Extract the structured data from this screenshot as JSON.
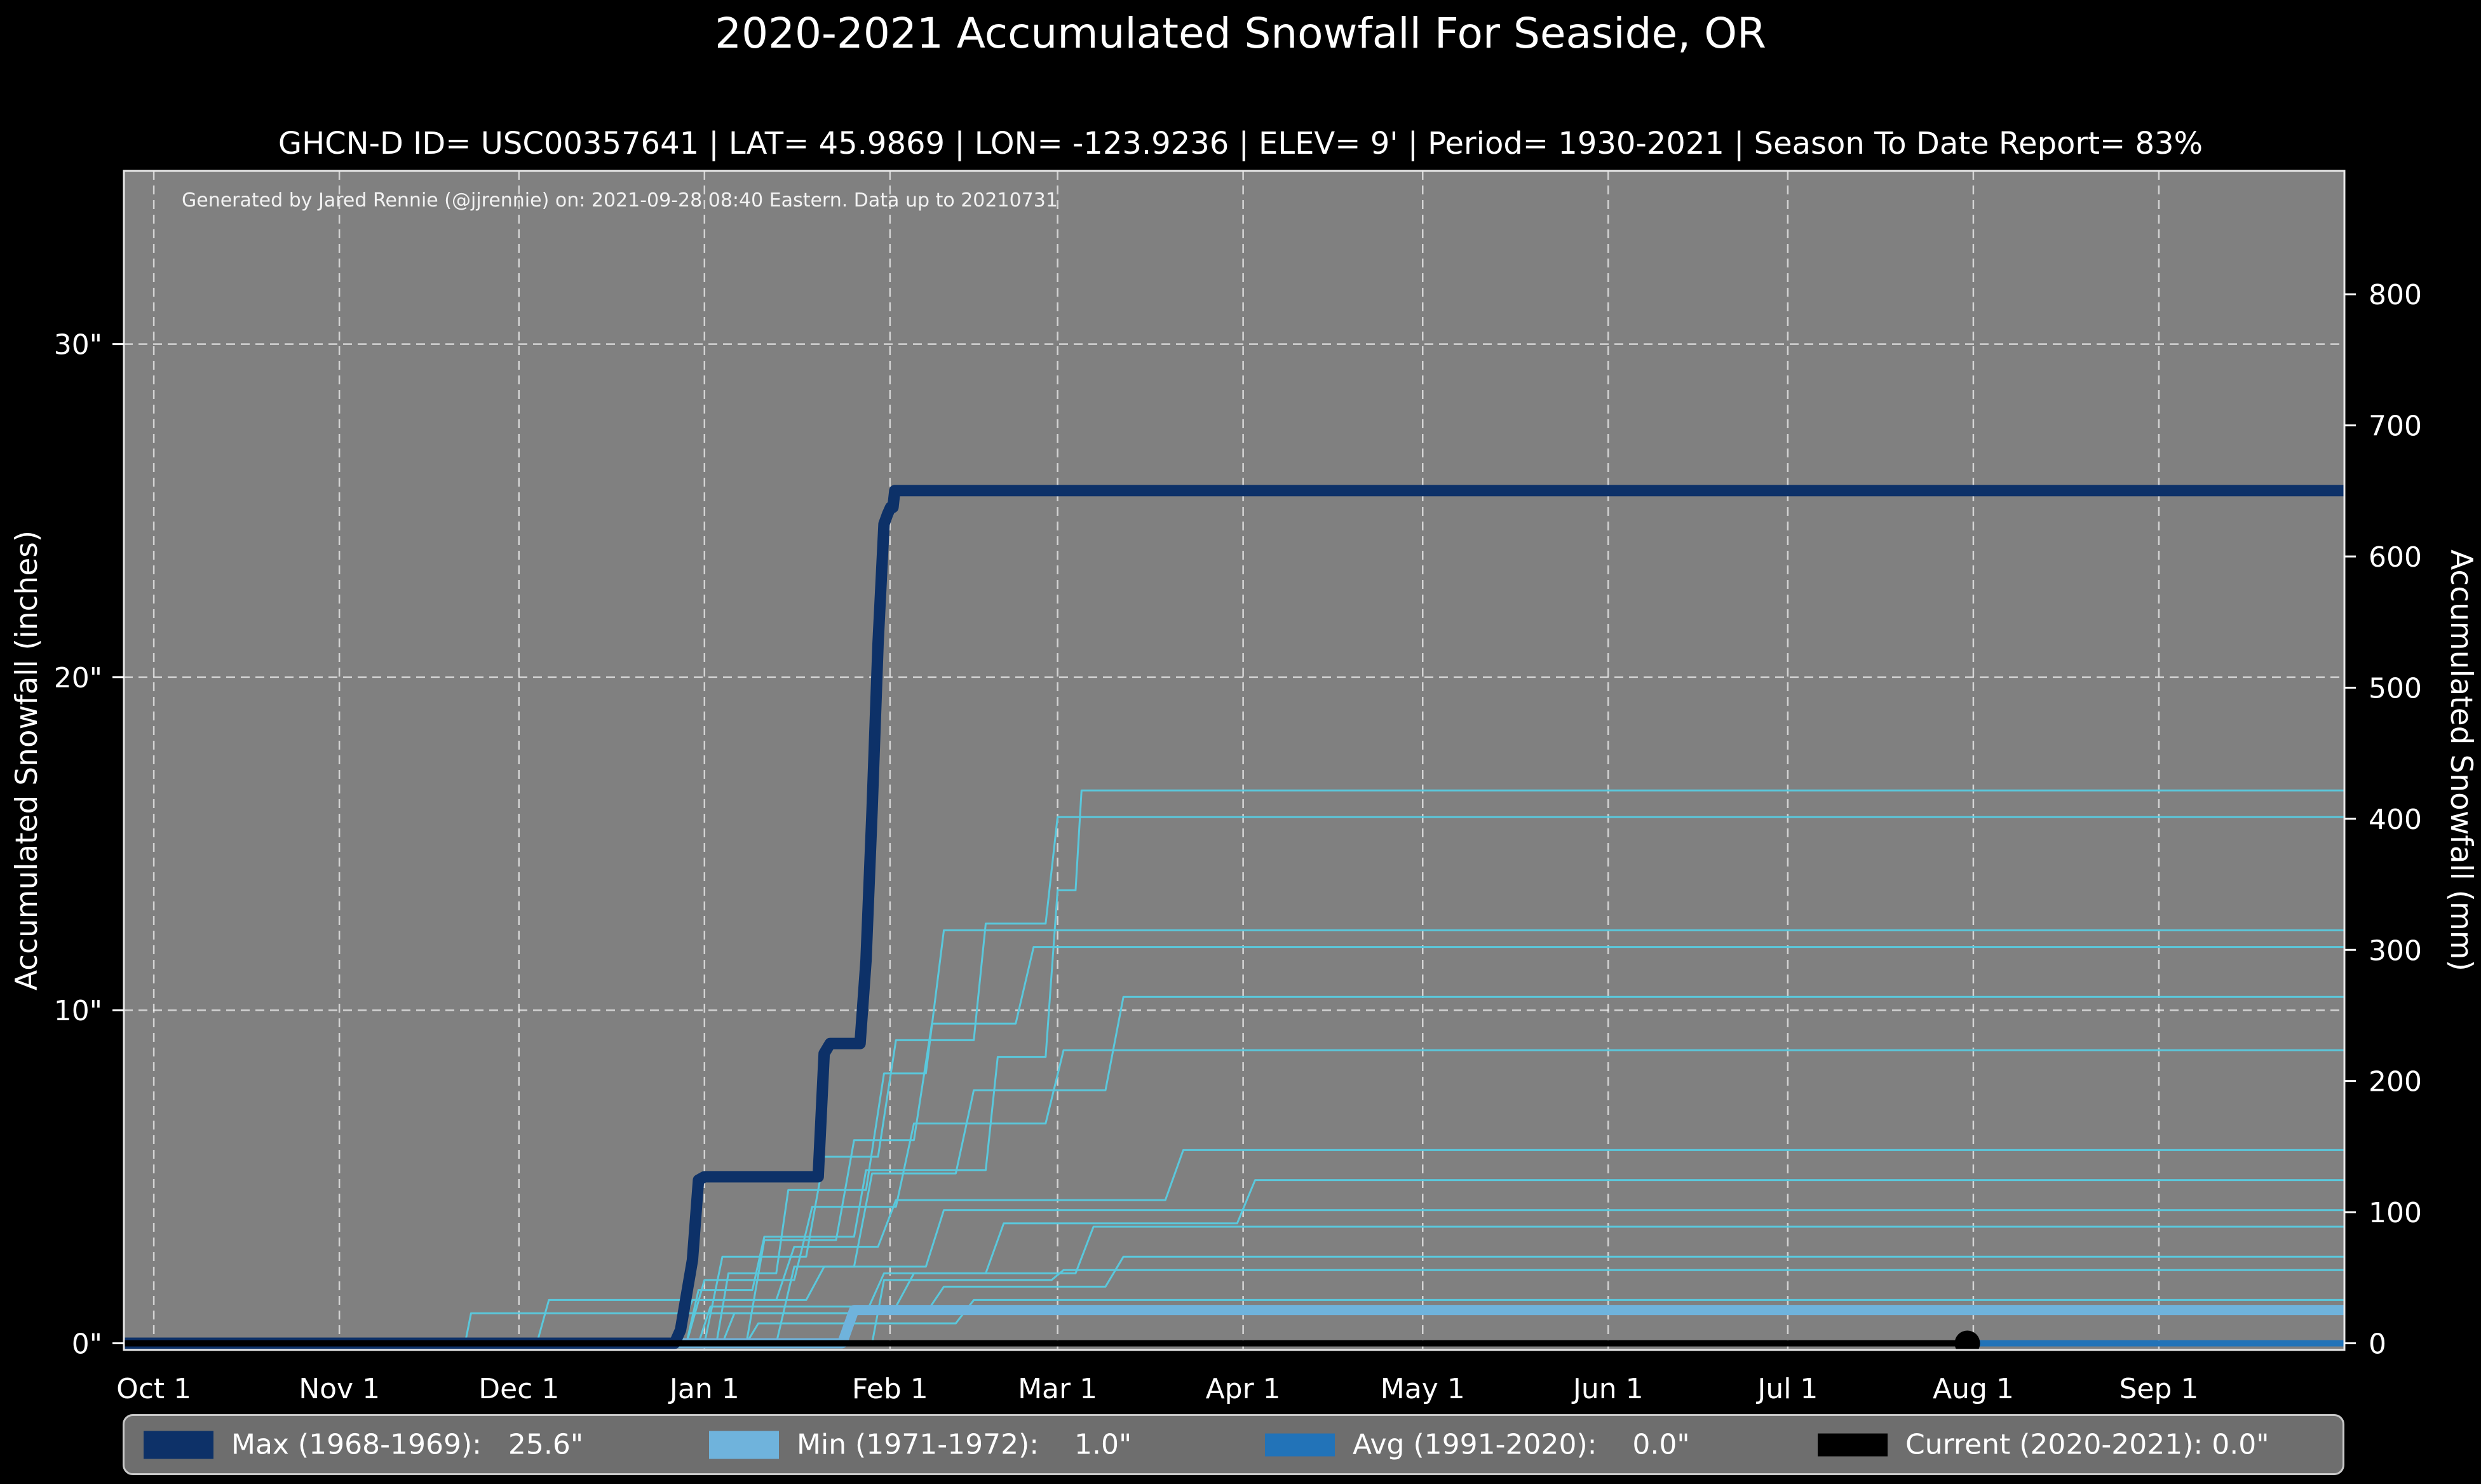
{
  "header": {
    "title": "2020-2021 Accumulated Snowfall For Seaside, OR",
    "subtitle": "GHCN-D ID= USC00357641 | LAT= 45.9869 | LON= -123.9236 | ELEV= 9' | Period= 1930-2021 | Season To Date Report= 83%"
  },
  "annotation": "Generated by Jared Rennie (@jjrennie) on: 2021-09-28 08:40 Eastern. Data up to 20210731",
  "colors": {
    "page_bg": "#000000",
    "plot_bg": "#808080",
    "grid": "rgba(255,255,255,0.65)",
    "spine": "#e8e8e8",
    "max_line": "#0d3168",
    "min_line": "#6fb3dc",
    "avg_line": "#2273b8",
    "current_line": "#000000",
    "other_years_line": "#5ac8dc"
  },
  "legend": {
    "items": [
      {
        "label": "Max (1968-1969):   25.6\"",
        "color": "#0d3168"
      },
      {
        "label": "Min (1971-1972):    1.0\"",
        "color": "#6fb3dc"
      },
      {
        "label": "Avg (1991-2020):    0.0\"",
        "color": "#2273b8"
      },
      {
        "label": "Current (2020-2021): 0.0\"",
        "color": "#000000"
      }
    ]
  },
  "chart_data": {
    "type": "line",
    "title": "2020-2021 Accumulated Snowfall For Seaside, OR",
    "xlabel": "",
    "ylabel_left": "Accumulated Snowfall (inches)",
    "ylabel_right": "Accumulated Snowfall (mm)",
    "x_unit": "days since Oct 1",
    "xlim": [
      -5,
      366
    ],
    "ylim_inches": [
      0,
      35.2
    ],
    "grid": true,
    "legend_position": "bottom",
    "x_ticks": [
      {
        "label": "Oct 1",
        "day": 0
      },
      {
        "label": "Nov 1",
        "day": 31
      },
      {
        "label": "Dec 1",
        "day": 61
      },
      {
        "label": "Jan 1",
        "day": 92
      },
      {
        "label": "Feb 1",
        "day": 123
      },
      {
        "label": "Mar 1",
        "day": 151
      },
      {
        "label": "Apr 1",
        "day": 182
      },
      {
        "label": "May 1",
        "day": 212
      },
      {
        "label": "Jun 1",
        "day": 243
      },
      {
        "label": "Jul 1",
        "day": 273
      },
      {
        "label": "Aug 1",
        "day": 304
      },
      {
        "label": "Sep 1",
        "day": 335
      }
    ],
    "y_left_ticks": [
      {
        "label": "0\"",
        "value": 0
      },
      {
        "label": "10\"",
        "value": 10
      },
      {
        "label": "20\"",
        "value": 20
      },
      {
        "label": "30\"",
        "value": 30
      }
    ],
    "y_right_ticks_mm": [
      0,
      100,
      200,
      300,
      400,
      500,
      600,
      700,
      800
    ],
    "series": [
      {
        "name": "Max (1968-1969)",
        "total": "25.6\"",
        "color": "#0d3168",
        "width": 18,
        "points": [
          [
            -5,
            0
          ],
          [
            87,
            0
          ],
          [
            88,
            0.4
          ],
          [
            90,
            2.5
          ],
          [
            91,
            4.9
          ],
          [
            92,
            5.0
          ],
          [
            111,
            5.0
          ],
          [
            112,
            8.7
          ],
          [
            113,
            9.0
          ],
          [
            118,
            9.0
          ],
          [
            119,
            11.5
          ],
          [
            120,
            16.0
          ],
          [
            121,
            21.0
          ],
          [
            122,
            24.6
          ],
          [
            122.6,
            24.9
          ],
          [
            123.1,
            25.1
          ],
          [
            123.5,
            25.1
          ],
          [
            123.8,
            25.6
          ],
          [
            366,
            25.6
          ]
        ]
      },
      {
        "name": "Min (1971-1972)",
        "total": "1.0\"",
        "color": "#6fb3dc",
        "width": 16,
        "points": [
          [
            -5,
            0
          ],
          [
            115,
            0
          ],
          [
            116,
            0.5
          ],
          [
            117,
            1.0
          ],
          [
            366,
            1.0
          ]
        ]
      },
      {
        "name": "Avg (1991-2020)",
        "total": "0.0\"",
        "color": "#2273b8",
        "width": 10,
        "points": [
          [
            -5,
            0
          ],
          [
            366,
            0
          ]
        ]
      },
      {
        "name": "Current (2020-2021)",
        "total": "0.0\"",
        "color": "#000000",
        "width": 10,
        "points": [
          [
            -5,
            0
          ],
          [
            303,
            0
          ]
        ],
        "end_marker": {
          "day": 303,
          "value": 0,
          "radius": 20
        }
      }
    ],
    "other_years": [
      {
        "points": [
          [
            -5,
            0
          ],
          [
            89,
            0
          ],
          [
            91,
            1.6
          ],
          [
            100,
            1.6
          ],
          [
            102,
            3.2
          ],
          [
            117,
            3.2
          ],
          [
            119,
            5.2
          ],
          [
            139,
            5.2
          ],
          [
            141,
            8.6
          ],
          [
            149,
            8.6
          ],
          [
            151,
            13.6
          ],
          [
            154,
            13.6
          ],
          [
            155,
            16.6
          ],
          [
            366,
            16.6
          ]
        ]
      },
      {
        "points": [
          [
            -5,
            0
          ],
          [
            92,
            0
          ],
          [
            95,
            2.6
          ],
          [
            109,
            2.6
          ],
          [
            112,
            5.6
          ],
          [
            121,
            5.6
          ],
          [
            124,
            9.1
          ],
          [
            137,
            9.1
          ],
          [
            139,
            12.6
          ],
          [
            149,
            12.6
          ],
          [
            151,
            15.8
          ],
          [
            366,
            15.8
          ]
        ]
      },
      {
        "points": [
          [
            -5,
            0
          ],
          [
            94,
            0
          ],
          [
            96,
            2.1
          ],
          [
            104,
            2.1
          ],
          [
            106,
            4.6
          ],
          [
            119,
            4.6
          ],
          [
            122,
            8.1
          ],
          [
            129,
            8.1
          ],
          [
            132,
            12.4
          ],
          [
            366,
            12.4
          ]
        ]
      },
      {
        "points": [
          [
            -5,
            0
          ],
          [
            99,
            0
          ],
          [
            102,
            3.1
          ],
          [
            114,
            3.1
          ],
          [
            117,
            6.1
          ],
          [
            127,
            6.1
          ],
          [
            130,
            9.6
          ],
          [
            144,
            9.6
          ],
          [
            147,
            11.9
          ],
          [
            366,
            11.9
          ]
        ]
      },
      {
        "points": [
          [
            -5,
            0
          ],
          [
            104,
            0
          ],
          [
            107,
            2.3
          ],
          [
            117,
            2.3
          ],
          [
            120,
            5.1
          ],
          [
            134,
            5.1
          ],
          [
            137,
            7.6
          ],
          [
            159,
            7.6
          ],
          [
            162,
            10.4
          ],
          [
            366,
            10.4
          ]
        ]
      },
      {
        "points": [
          [
            -5,
            0
          ],
          [
            89,
            0
          ],
          [
            92,
            1.9
          ],
          [
            107,
            1.9
          ],
          [
            110,
            4.1
          ],
          [
            124,
            4.1
          ],
          [
            127,
            6.6
          ],
          [
            149,
            6.6
          ],
          [
            152,
            8.8
          ],
          [
            366,
            8.8
          ]
        ]
      },
      {
        "points": [
          [
            -5,
            0
          ],
          [
            87,
            0
          ],
          [
            90,
            1.3
          ],
          [
            104,
            1.3
          ],
          [
            107,
            2.9
          ],
          [
            121,
            2.9
          ],
          [
            124,
            4.3
          ],
          [
            169,
            4.3
          ],
          [
            172,
            5.8
          ],
          [
            366,
            5.8
          ]
        ]
      },
      {
        "points": [
          [
            -5,
            0
          ],
          [
            52,
            0
          ],
          [
            53,
            0.9
          ],
          [
            119,
            0.9
          ],
          [
            122,
            2.1
          ],
          [
            139,
            2.1
          ],
          [
            142,
            3.6
          ],
          [
            181,
            3.6
          ],
          [
            184,
            4.9
          ],
          [
            366,
            4.9
          ]
        ]
      },
      {
        "points": [
          [
            -5,
            0
          ],
          [
            64,
            0
          ],
          [
            66,
            1.3
          ],
          [
            109,
            1.3
          ],
          [
            112,
            2.3
          ],
          [
            129,
            2.3
          ],
          [
            132,
            4.0
          ],
          [
            366,
            4.0
          ]
        ]
      },
      {
        "points": [
          [
            -5,
            0
          ],
          [
            91,
            0
          ],
          [
            93,
            1.1
          ],
          [
            124,
            1.1
          ],
          [
            127,
            2.1
          ],
          [
            154,
            2.1
          ],
          [
            157,
            3.5
          ],
          [
            366,
            3.5
          ]
        ]
      },
      {
        "points": [
          [
            -5,
            0
          ],
          [
            95,
            0
          ],
          [
            97,
            0.9
          ],
          [
            129,
            0.9
          ],
          [
            132,
            1.7
          ],
          [
            159,
            1.7
          ],
          [
            162,
            2.6
          ],
          [
            366,
            2.6
          ]
        ]
      },
      {
        "points": [
          [
            -5,
            0
          ],
          [
            99,
            0
          ],
          [
            101,
            0.6
          ],
          [
            134,
            0.6
          ],
          [
            137,
            1.3
          ],
          [
            366,
            1.3
          ]
        ]
      },
      {
        "points": [
          [
            -5,
            0
          ],
          [
            120,
            0
          ],
          [
            122,
            1.9
          ],
          [
            150,
            1.9
          ],
          [
            152,
            2.2
          ],
          [
            366,
            2.2
          ]
        ]
      }
    ]
  }
}
